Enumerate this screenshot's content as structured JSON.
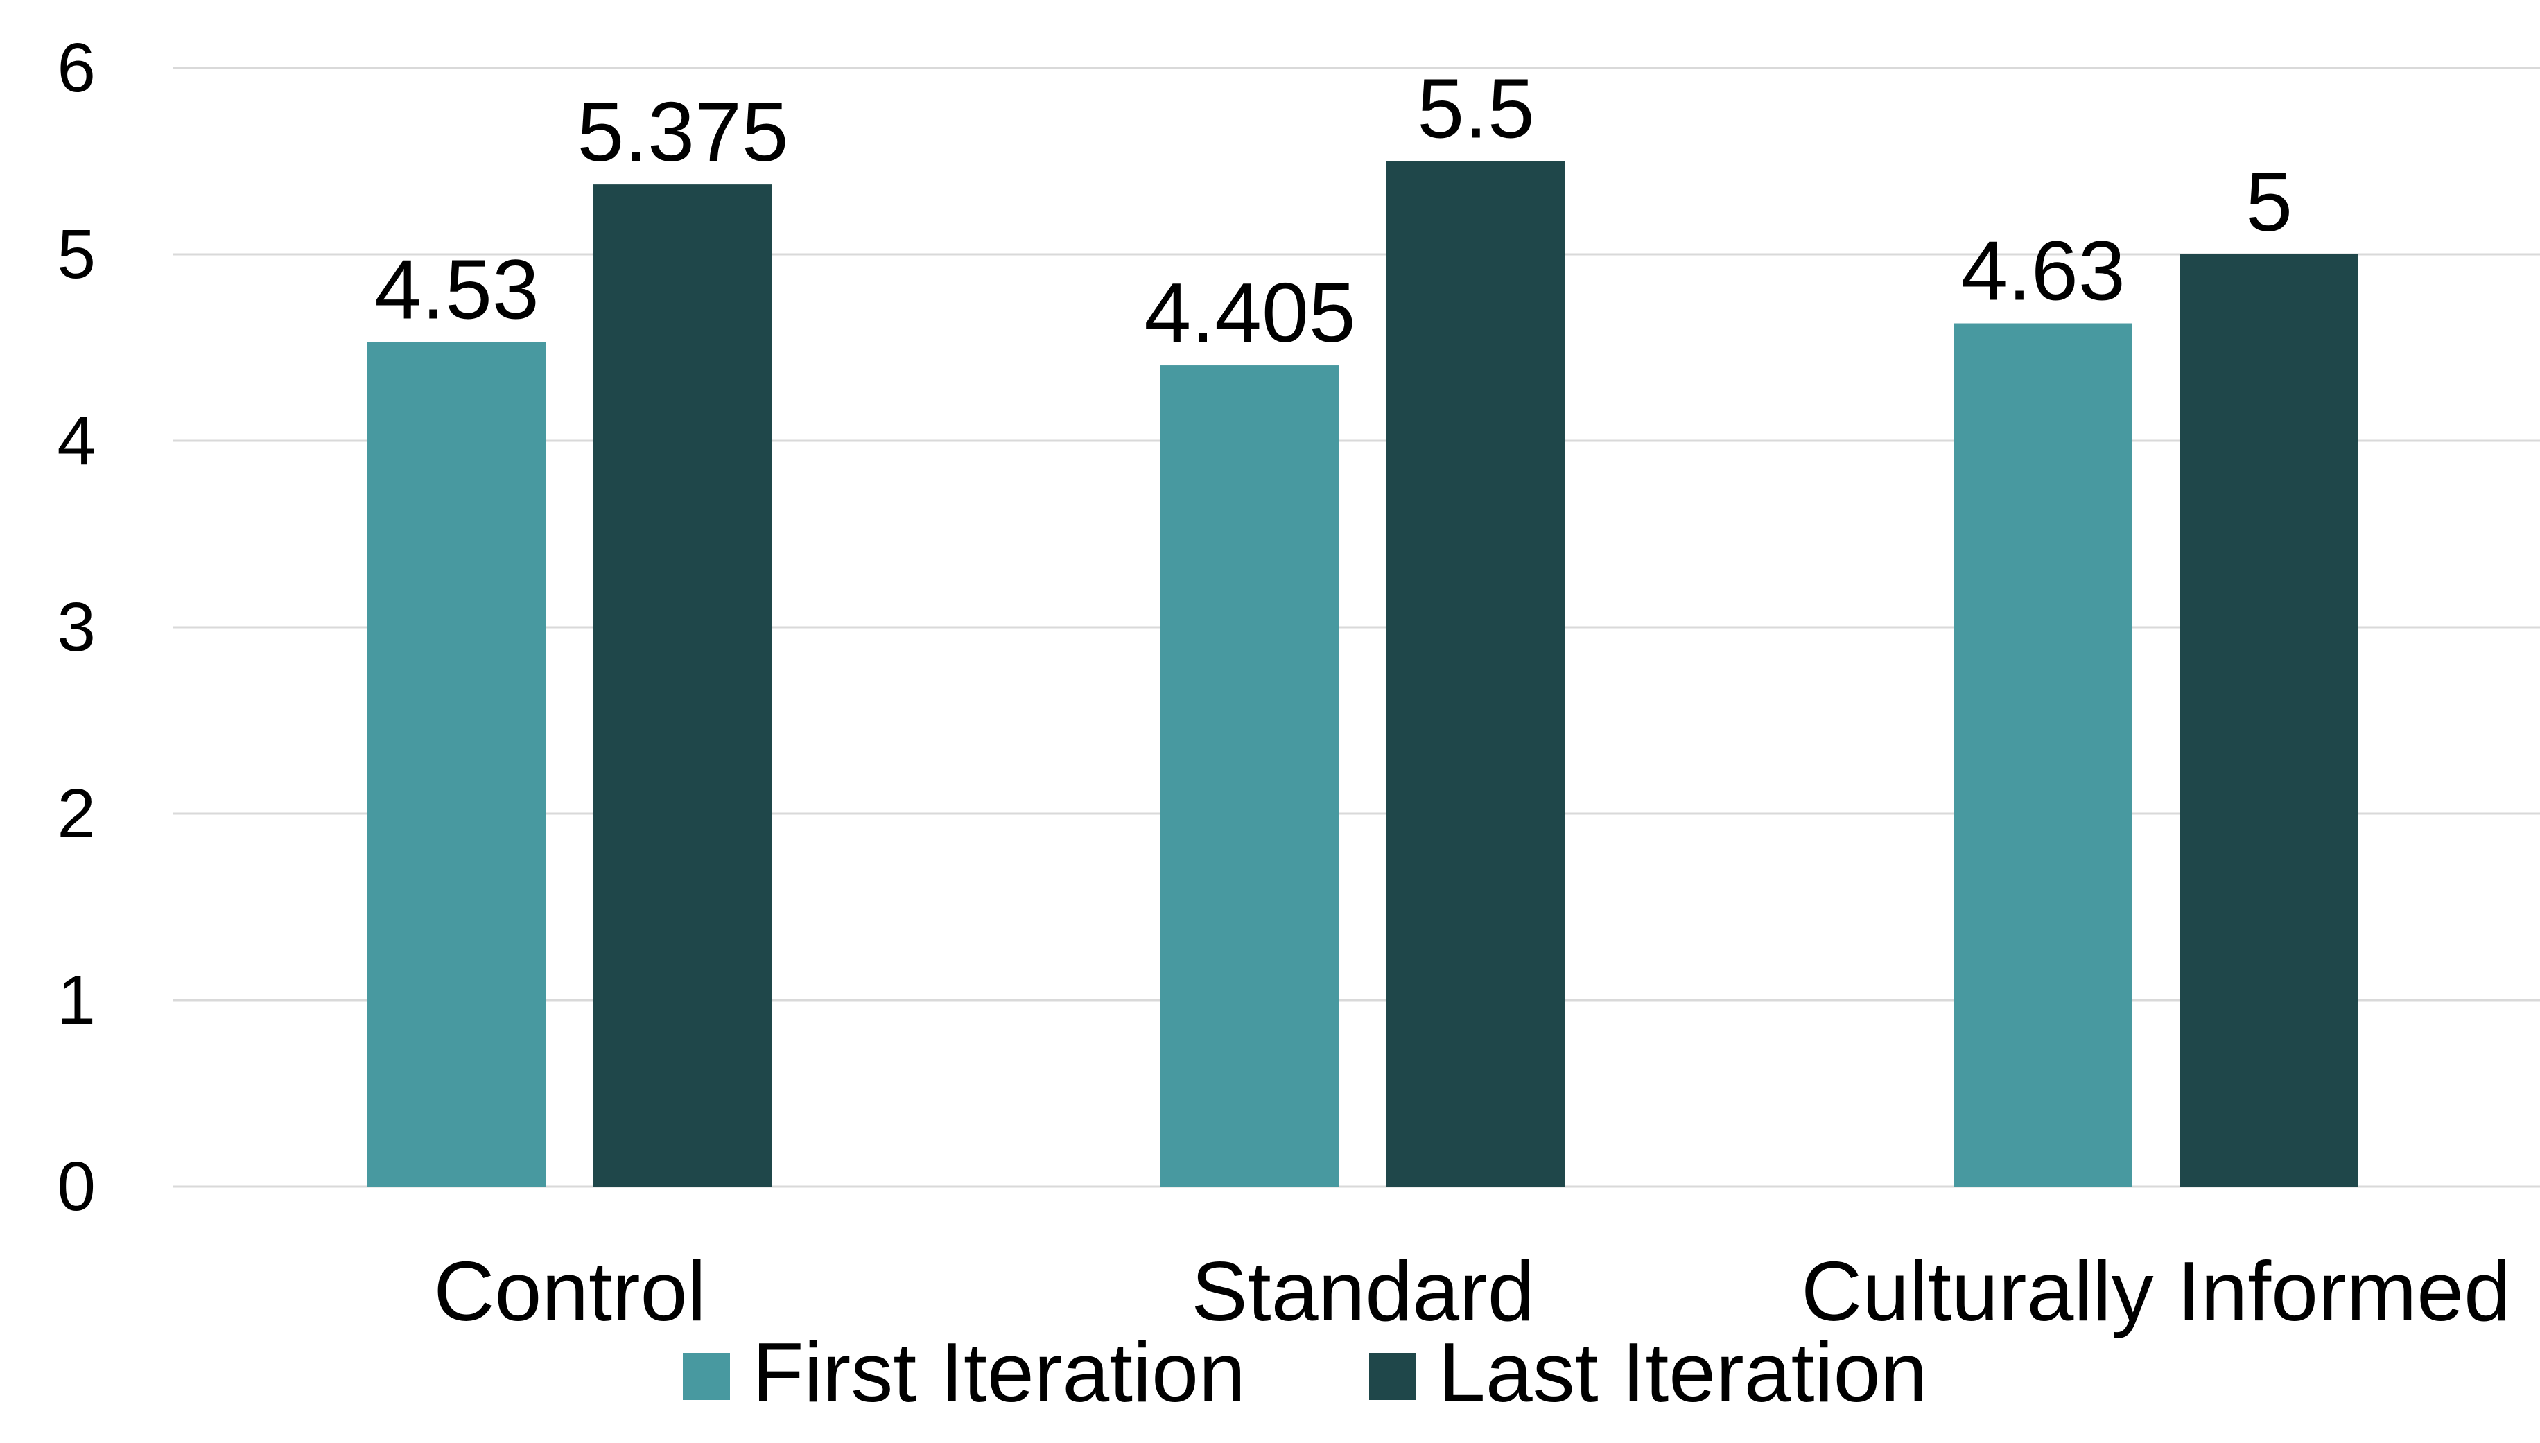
{
  "chart_data": {
    "type": "bar",
    "title": "",
    "xlabel": "",
    "ylabel": "",
    "categories": [
      "Control",
      "Standard",
      "Culturally Informed"
    ],
    "series": [
      {
        "name": "First Iteration",
        "values": [
          4.53,
          4.405,
          4.63
        ],
        "color": "#4899a0"
      },
      {
        "name": "Last Iteration",
        "values": [
          5.375,
          5.5,
          5
        ],
        "color": "#1f474a"
      }
    ],
    "data_labels": [
      [
        "4.53",
        "4.405",
        "4.63"
      ],
      [
        "5.375",
        "5.5",
        "5"
      ]
    ],
    "ylim": [
      0,
      6
    ],
    "yticks": [
      "0",
      "1",
      "2",
      "3",
      "4",
      "5",
      "6"
    ],
    "grid": true,
    "legend_position": "bottom",
    "gridline_color": "#d9d9d9"
  }
}
